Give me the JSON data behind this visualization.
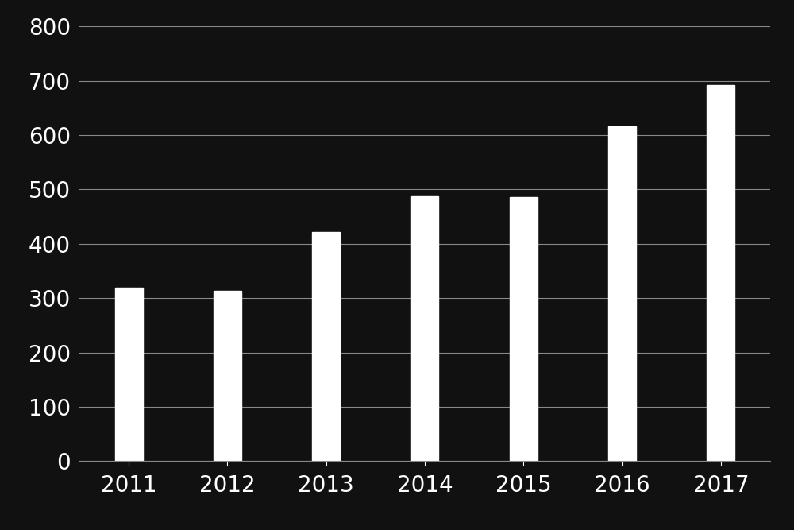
{
  "categories": [
    "2011",
    "2012",
    "2013",
    "2014",
    "2015",
    "2016",
    "2017"
  ],
  "values": [
    320,
    314,
    422,
    487,
    486,
    616,
    692
  ],
  "bar_color": "#ffffff",
  "background_color": "#111111",
  "plot_bg_color": "#111111",
  "grid_color": "#888888",
  "text_color": "#ffffff",
  "tick_label_fontsize": 20,
  "ylim": [
    0,
    800
  ],
  "yticks": [
    0,
    100,
    200,
    300,
    400,
    500,
    600,
    700,
    800
  ],
  "bar_width": 0.28
}
